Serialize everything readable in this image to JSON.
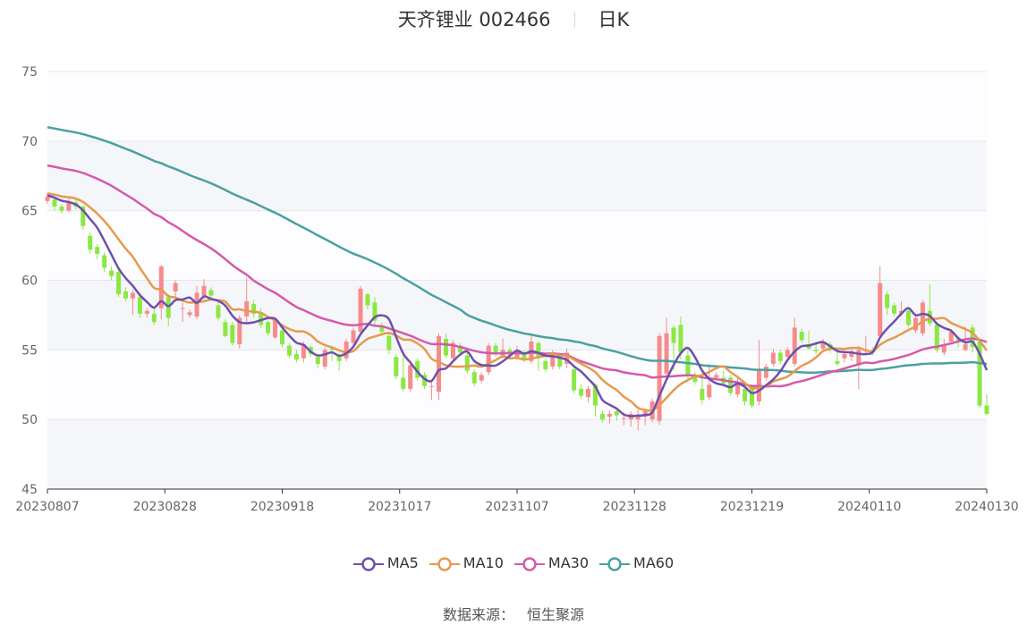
{
  "header": {
    "title": "天齐锂业 002466",
    "period": "日K"
  },
  "source": {
    "label": "数据来源：",
    "value": "恒生聚源"
  },
  "colors": {
    "up": "#f78b8b",
    "down": "#8be843",
    "MA5": "#6e50ab",
    "MA10": "#e69a4e",
    "MA30": "#d45aa9",
    "MA60": "#4aa1a0"
  },
  "chart_data": {
    "type": "candlestick",
    "title": "天齐锂业 002466",
    "ylim": [
      45,
      75
    ],
    "yticks": [
      45,
      50,
      55,
      60,
      65,
      70,
      75
    ],
    "xticks": [
      "20230807",
      "20230828",
      "20230918",
      "20231017",
      "20231107",
      "20231128",
      "20231219",
      "20240110",
      "20240130"
    ],
    "grid": true,
    "legend_position": "bottom",
    "series_names": [
      "MA5",
      "MA10",
      "MA30",
      "MA60"
    ],
    "candles": [
      [
        65.7,
        66.0,
        65.5,
        66.3
      ],
      [
        65.8,
        65.3,
        65.0,
        66.0
      ],
      [
        65.3,
        65.0,
        64.8,
        65.5
      ],
      [
        65.0,
        65.6,
        64.9,
        65.9
      ],
      [
        65.6,
        65.3,
        65.1,
        65.8
      ],
      [
        65.3,
        63.9,
        63.6,
        65.4
      ],
      [
        63.2,
        62.2,
        61.9,
        63.4
      ],
      [
        62.4,
        61.9,
        61.5,
        62.6
      ],
      [
        61.8,
        60.9,
        60.6,
        62.0
      ],
      [
        60.7,
        60.3,
        60.0,
        61.0
      ],
      [
        60.6,
        59.0,
        58.8,
        60.8
      ],
      [
        59.2,
        58.7,
        58.5,
        59.5
      ],
      [
        58.7,
        59.1,
        57.5,
        59.3
      ],
      [
        58.8,
        57.6,
        57.3,
        59.1
      ],
      [
        57.6,
        57.8,
        57.3,
        58.0
      ],
      [
        57.6,
        57.0,
        56.8,
        58.0
      ],
      [
        58.0,
        61.0,
        57.2,
        61.1
      ],
      [
        58.8,
        57.3,
        56.7,
        59.0
      ],
      [
        59.2,
        59.8,
        58.8,
        60.0
      ],
      [
        58.0,
        58.0,
        57.0,
        58.4
      ],
      [
        57.5,
        57.7,
        57.3,
        57.9
      ],
      [
        57.4,
        59.1,
        57.2,
        59.6
      ],
      [
        58.9,
        59.6,
        58.6,
        60.1
      ],
      [
        59.3,
        58.9,
        58.7,
        59.5
      ],
      [
        58.2,
        57.3,
        57.1,
        58.5
      ],
      [
        57.0,
        56.0,
        55.9,
        57.2
      ],
      [
        56.8,
        55.5,
        55.3,
        57.0
      ],
      [
        55.4,
        57.3,
        55.1,
        57.5
      ],
      [
        57.4,
        58.5,
        57.0,
        60.2
      ],
      [
        58.3,
        57.6,
        57.3,
        58.6
      ],
      [
        57.7,
        56.8,
        56.6,
        58.0
      ],
      [
        57.0,
        56.2,
        56.0,
        57.1
      ],
      [
        55.9,
        57.1,
        55.8,
        57.2
      ],
      [
        56.4,
        55.4,
        55.2,
        56.6
      ],
      [
        55.3,
        54.6,
        54.4,
        55.5
      ],
      [
        54.7,
        54.3,
        54.1,
        55.0
      ],
      [
        54.4,
        55.4,
        54.1,
        55.6
      ],
      [
        55.2,
        54.7,
        54.5,
        55.3
      ],
      [
        54.5,
        54.0,
        53.7,
        54.6
      ],
      [
        53.8,
        55.0,
        53.6,
        55.2
      ],
      [
        55.1,
        55.0,
        54.2,
        55.3
      ],
      [
        54.6,
        54.2,
        53.5,
        54.8
      ],
      [
        54.4,
        55.6,
        54.2,
        55.8
      ],
      [
        55.5,
        56.4,
        55.3,
        56.6
      ],
      [
        56.3,
        59.4,
        56.1,
        59.6
      ],
      [
        59.0,
        58.2,
        57.9,
        59.1
      ],
      [
        58.4,
        57.1,
        56.8,
        58.8
      ],
      [
        56.7,
        56.3,
        56.0,
        57.0
      ],
      [
        56.0,
        55.0,
        54.7,
        56.2
      ],
      [
        54.5,
        53.1,
        52.9,
        54.7
      ],
      [
        53.0,
        52.2,
        52.0,
        54.8
      ],
      [
        52.2,
        53.9,
        52.0,
        54.0
      ],
      [
        54.2,
        53.0,
        52.8,
        54.4
      ],
      [
        53.2,
        52.4,
        52.2,
        53.4
      ],
      [
        52.4,
        52.4,
        51.4,
        52.7
      ],
      [
        52.0,
        56.0,
        51.4,
        56.2
      ],
      [
        55.8,
        54.6,
        54.4,
        56.2
      ],
      [
        54.4,
        55.5,
        54.2,
        55.7
      ],
      [
        55.3,
        54.8,
        54.6,
        55.5
      ],
      [
        54.6,
        53.5,
        53.3,
        54.8
      ],
      [
        53.4,
        52.6,
        52.4,
        53.6
      ],
      [
        52.8,
        53.2,
        52.6,
        53.4
      ],
      [
        53.4,
        55.3,
        53.2,
        55.5
      ],
      [
        55.3,
        54.8,
        54.5,
        55.5
      ],
      [
        54.6,
        55.0,
        54.4,
        55.8
      ],
      [
        55.0,
        54.6,
        54.4,
        55.2
      ],
      [
        54.5,
        55.0,
        54.3,
        55.3
      ],
      [
        54.8,
        54.3,
        54.1,
        55.0
      ],
      [
        54.2,
        55.6,
        54.0,
        56.2
      ],
      [
        55.5,
        54.4,
        53.5,
        55.6
      ],
      [
        54.2,
        53.6,
        53.4,
        54.4
      ],
      [
        53.8,
        54.8,
        53.6,
        55.0
      ],
      [
        54.6,
        53.8,
        53.6,
        54.8
      ],
      [
        54.0,
        54.8,
        53.7,
        55.1
      ],
      [
        53.6,
        52.1,
        51.9,
        53.8
      ],
      [
        52.2,
        51.7,
        51.5,
        52.5
      ],
      [
        51.6,
        52.2,
        51.2,
        52.4
      ],
      [
        52.5,
        51.0,
        50.2,
        52.6
      ],
      [
        50.4,
        50.0,
        49.8,
        50.6
      ],
      [
        50.2,
        50.4,
        49.7,
        50.6
      ],
      [
        50.6,
        50.3,
        49.9,
        50.8
      ],
      [
        50.1,
        50.1,
        49.6,
        50.5
      ],
      [
        50.0,
        50.4,
        49.5,
        50.6
      ],
      [
        50.0,
        50.2,
        49.2,
        50.7
      ],
      [
        50.2,
        50.6,
        49.6,
        50.8
      ],
      [
        50.0,
        51.3,
        49.8,
        51.5
      ],
      [
        49.9,
        56.0,
        49.6,
        56.2
      ],
      [
        53.3,
        56.2,
        53.0,
        57.3
      ],
      [
        56.6,
        55.5,
        53.5,
        56.8
      ],
      [
        56.8,
        54.8,
        54.3,
        57.4
      ],
      [
        54.6,
        53.2,
        52.8,
        55.0
      ],
      [
        53.2,
        52.7,
        52.5,
        53.4
      ],
      [
        52.2,
        51.4,
        51.1,
        53.5
      ],
      [
        51.6,
        52.5,
        51.4,
        54.0
      ],
      [
        53.0,
        53.2,
        52.8,
        53.4
      ],
      [
        53.0,
        52.6,
        52.4,
        53.5
      ],
      [
        53.0,
        51.9,
        51.7,
        53.2
      ],
      [
        51.8,
        52.7,
        51.6,
        53.0
      ],
      [
        52.2,
        51.3,
        51.0,
        52.5
      ],
      [
        52.3,
        51.0,
        50.8,
        52.5
      ],
      [
        51.3,
        53.5,
        51.0,
        55.7
      ],
      [
        53.0,
        53.8,
        52.8,
        54.0
      ],
      [
        54.0,
        54.8,
        53.8,
        55.1
      ],
      [
        54.8,
        54.2,
        54.0,
        55.0
      ],
      [
        54.5,
        55.0,
        54.2,
        55.2
      ],
      [
        54.0,
        56.6,
        53.8,
        57.3
      ],
      [
        56.3,
        55.7,
        55.5,
        56.5
      ],
      [
        55.4,
        55.1,
        55.0,
        56.4
      ],
      [
        55.0,
        54.9,
        54.7,
        55.6
      ],
      [
        55.1,
        55.5,
        54.9,
        55.8
      ],
      [
        55.4,
        55.1,
        54.8,
        55.6
      ],
      [
        54.2,
        54.0,
        53.8,
        55.0
      ],
      [
        54.4,
        54.7,
        54.1,
        55.0
      ],
      [
        54.5,
        54.8,
        54.2,
        55.2
      ],
      [
        54.0,
        55.0,
        52.2,
        55.3
      ],
      [
        54.9,
        55.0,
        54.6,
        56.0
      ],
      [
        55.0,
        54.8,
        54.6,
        55.2
      ],
      [
        56.0,
        59.8,
        55.8,
        61.0
      ],
      [
        59.0,
        58.0,
        57.5,
        59.2
      ],
      [
        58.2,
        57.6,
        57.4,
        58.4
      ],
      [
        57.6,
        57.8,
        57.4,
        58.5
      ],
      [
        57.8,
        56.8,
        56.6,
        58.0
      ],
      [
        56.4,
        57.3,
        56.2,
        57.6
      ],
      [
        56.2,
        58.4,
        56.0,
        58.6
      ],
      [
        57.8,
        56.9,
        56.7,
        59.7
      ],
      [
        56.8,
        55.0,
        54.8,
        57.0
      ],
      [
        54.8,
        55.3,
        54.6,
        55.8
      ],
      [
        55.6,
        56.3,
        55.4,
        56.5
      ],
      [
        55.8,
        55.7,
        55.2,
        56.0
      ],
      [
        55.0,
        55.4,
        54.9,
        56.7
      ],
      [
        56.6,
        55.2,
        54.8,
        56.8
      ],
      [
        55.6,
        51.0,
        50.8,
        55.8
      ],
      [
        51.0,
        50.4,
        50.3,
        51.8
      ]
    ]
  }
}
